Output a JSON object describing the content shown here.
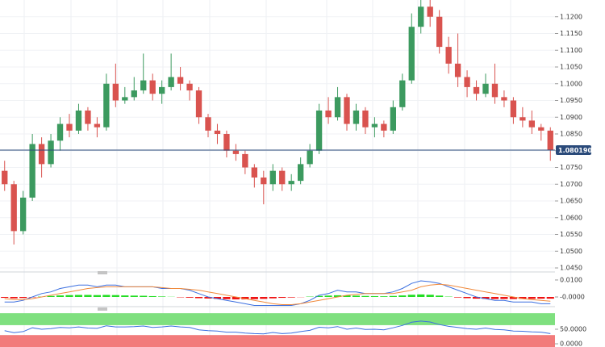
{
  "chart_data": [
    {
      "type": "candlestick",
      "open": [
        1.074,
        1.07,
        1.056,
        1.066,
        1.082,
        1.076,
        1.083,
        1.088,
        1.086,
        1.092,
        1.088,
        1.087,
        1.1,
        1.095,
        1.096,
        1.098,
        1.101,
        1.097,
        1.099,
        1.102,
        1.1,
        1.098,
        1.09,
        1.086,
        1.085,
        1.08,
        1.079,
        1.075,
        1.072,
        1.07,
        1.074,
        1.07,
        1.071,
        1.076,
        1.08,
        1.092,
        1.09,
        1.096,
        1.088,
        1.092,
        1.087,
        1.088,
        1.086,
        1.093,
        1.101,
        1.117,
        1.123,
        1.12,
        1.111,
        1.106,
        1.102,
        1.099,
        1.097,
        1.1,
        1.096,
        1.095,
        1.09,
        1.089,
        1.087,
        1.086
      ],
      "high": [
        1.077,
        1.071,
        1.068,
        1.085,
        1.084,
        1.085,
        1.09,
        1.091,
        1.094,
        1.093,
        1.09,
        1.103,
        1.106,
        1.099,
        1.102,
        1.109,
        1.103,
        1.101,
        1.109,
        1.105,
        1.101,
        1.099,
        1.091,
        1.088,
        1.086,
        1.082,
        1.08,
        1.076,
        1.074,
        1.076,
        1.075,
        1.073,
        1.078,
        1.082,
        1.094,
        1.096,
        1.099,
        1.097,
        1.094,
        1.093,
        1.09,
        1.089,
        1.095,
        1.103,
        1.121,
        1.127,
        1.125,
        1.122,
        1.114,
        1.115,
        1.104,
        1.101,
        1.103,
        1.106,
        1.098,
        1.096,
        1.093,
        1.092,
        1.088,
        1.087
      ],
      "low": [
        1.068,
        1.052,
        1.055,
        1.065,
        1.072,
        1.075,
        1.08,
        1.084,
        1.085,
        1.086,
        1.084,
        1.086,
        1.093,
        1.094,
        1.095,
        1.097,
        1.095,
        1.094,
        1.098,
        1.098,
        1.095,
        1.088,
        1.084,
        1.082,
        1.078,
        1.077,
        1.073,
        1.069,
        1.064,
        1.068,
        1.068,
        1.068,
        1.07,
        1.075,
        1.079,
        1.088,
        1.089,
        1.086,
        1.086,
        1.085,
        1.084,
        1.084,
        1.085,
        1.092,
        1.1,
        1.115,
        1.117,
        1.109,
        1.103,
        1.099,
        1.096,
        1.095,
        1.096,
        1.094,
        1.093,
        1.088,
        1.087,
        1.085,
        1.083,
        1.077
      ],
      "close": [
        1.07,
        1.056,
        1.066,
        1.082,
        1.076,
        1.083,
        1.088,
        1.086,
        1.092,
        1.088,
        1.087,
        1.1,
        1.095,
        1.096,
        1.098,
        1.101,
        1.097,
        1.099,
        1.102,
        1.1,
        1.098,
        1.09,
        1.086,
        1.085,
        1.08,
        1.079,
        1.075,
        1.072,
        1.07,
        1.074,
        1.07,
        1.071,
        1.076,
        1.08,
        1.092,
        1.09,
        1.096,
        1.088,
        1.092,
        1.087,
        1.088,
        1.086,
        1.093,
        1.101,
        1.117,
        1.123,
        1.12,
        1.111,
        1.106,
        1.102,
        1.099,
        1.097,
        1.1,
        1.096,
        1.095,
        1.09,
        1.089,
        1.087,
        1.086,
        1.0802
      ],
      "up_color": "#3c9a5f",
      "down_color": "#d9534f",
      "ylim": [
        1.0438,
        1.125
      ],
      "yticks": [
        {
          "value": 1.045,
          "label": "1.0450"
        },
        {
          "value": 1.05,
          "label": "1.0500"
        },
        {
          "value": 1.055,
          "label": "1.0550"
        },
        {
          "value": 1.06,
          "label": "1.0600"
        },
        {
          "value": 1.065,
          "label": "1.0650"
        },
        {
          "value": 1.07,
          "label": "1.0700"
        },
        {
          "value": 1.075,
          "label": "1.0750"
        },
        {
          "value": 1.08,
          "label": "1.0800"
        },
        {
          "value": 1.085,
          "label": "1.0850"
        },
        {
          "value": 1.09,
          "label": "1.0900"
        },
        {
          "value": 1.095,
          "label": "1.0950"
        },
        {
          "value": 1.1,
          "label": "1.1000"
        },
        {
          "value": 1.105,
          "label": "1.1050"
        },
        {
          "value": 1.11,
          "label": "1.1100"
        },
        {
          "value": 1.115,
          "label": "1.1150"
        },
        {
          "value": 1.12,
          "label": "1.1200"
        }
      ],
      "current_price": {
        "value": 1.08019,
        "label": "1.080190"
      },
      "current_color": "#2a4a7a"
    },
    {
      "type": "macd",
      "bars": {
        "values": [
          -0.0005,
          -0.0008,
          -0.0006,
          -0.0002,
          0.0002,
          0.0006,
          0.0009,
          0.0011,
          0.0012,
          0.0012,
          0.0011,
          0.0012,
          0.0011,
          0.0009,
          0.0008,
          0.0007,
          0.0005,
          0.0003,
          0.0001,
          -0.0002,
          -0.0004,
          -0.0007,
          -0.0009,
          -0.0011,
          -0.0013,
          -0.0014,
          -0.0014,
          -0.0013,
          -0.0011,
          -0.0008,
          -0.0005,
          -0.0003,
          -0.0001,
          0.0002,
          0.0006,
          0.0008,
          0.001,
          0.0009,
          0.0008,
          0.0006,
          0.0005,
          0.0004,
          0.0006,
          0.0009,
          0.0013,
          0.0015,
          0.0013,
          0.0008,
          0.0002,
          -0.0003,
          -0.0007,
          -0.001,
          -0.0011,
          -0.0012,
          -0.0012,
          -0.0012,
          -0.0011,
          -0.0011,
          -0.001,
          -0.001
        ],
        "up_color": "#22dd22",
        "down_color": "#ee1111"
      },
      "series": [
        {
          "color": "#3b6fe0",
          "values": [
            -0.003,
            -0.003,
            -0.002,
            0,
            0.002,
            0.003,
            0.005,
            0.006,
            0.007,
            0.007,
            0.006,
            0.007,
            0.007,
            0.006,
            0.006,
            0.006,
            0.006,
            0.005,
            0.005,
            0.005,
            0.004,
            0.002,
            0,
            -0.001,
            -0.002,
            -0.003,
            -0.004,
            -0.005,
            -0.005,
            -0.005,
            -0.005,
            -0.005,
            -0.004,
            -0.002,
            0.001,
            0.002,
            0.004,
            0.003,
            0.003,
            0.002,
            0.002,
            0.002,
            0.003,
            0.005,
            0.008,
            0.0095,
            0.009,
            0.008,
            0.006,
            0.004,
            0.002,
            0,
            -0.001,
            -0.002,
            -0.002,
            -0.003,
            -0.003,
            -0.003,
            -0.004,
            -0.004
          ]
        },
        {
          "color": "#f08a3c",
          "values": [
            -0.001,
            -0.0015,
            -0.0015,
            -0.001,
            0,
            0.001,
            0.002,
            0.003,
            0.004,
            0.005,
            0.0055,
            0.006,
            0.006,
            0.006,
            0.006,
            0.006,
            0.006,
            0.0055,
            0.005,
            0.005,
            0.0045,
            0.004,
            0.003,
            0.002,
            0.001,
            0,
            -0.001,
            -0.002,
            -0.003,
            -0.004,
            -0.0045,
            -0.0045,
            -0.004,
            -0.003,
            -0.002,
            -0.001,
            0,
            0.001,
            0.0015,
            0.002,
            0.002,
            0.002,
            0.002,
            0.003,
            0.004,
            0.006,
            0.007,
            0.0075,
            0.007,
            0.006,
            0.005,
            0.004,
            0.003,
            0.002,
            0.001,
            0,
            -0.001,
            -0.0015,
            -0.002,
            -0.0025
          ]
        }
      ],
      "ylim": [
        -0.0057,
        0.0133
      ],
      "yticks": [
        {
          "value": 0.01,
          "label": "0.0100"
        },
        {
          "value": 0,
          "label": "-0.0000"
        }
      ]
    },
    {
      "type": "line",
      "color": "#3b6fe0",
      "values": [
        45,
        38,
        42,
        55,
        50,
        52,
        56,
        55,
        58,
        54,
        53,
        62,
        58,
        58,
        59,
        61,
        56,
        58,
        61,
        58,
        56,
        48,
        45,
        44,
        40,
        40,
        37,
        35,
        34,
        39,
        35,
        37,
        42,
        46,
        57,
        55,
        59,
        50,
        54,
        49,
        50,
        48,
        55,
        63,
        74,
        78,
        75,
        66,
        60,
        56,
        52,
        50,
        54,
        49,
        48,
        44,
        43,
        41,
        40,
        35
      ],
      "bands": [
        {
          "range": [
            64,
            105
          ],
          "color": "#7fe07f"
        },
        {
          "range": [
            -11,
            30
          ],
          "color": "#f27b7b"
        }
      ],
      "ylim": [
        -11,
        122
      ],
      "yticks": [
        {
          "value": 50,
          "label": "50.0000"
        },
        {
          "value": 0,
          "label": "0.0000"
        }
      ]
    }
  ]
}
